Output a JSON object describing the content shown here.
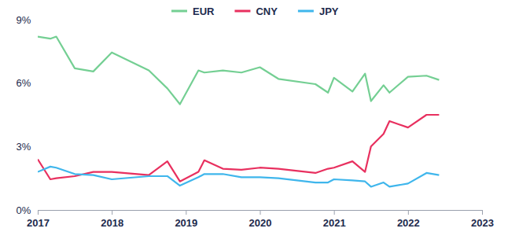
{
  "chart_data": {
    "type": "line",
    "x": [
      2017.0,
      2017.17,
      2017.25,
      2017.5,
      2017.75,
      2018.0,
      2018.5,
      2018.75,
      2018.92,
      2019.17,
      2019.25,
      2019.5,
      2019.75,
      2020.0,
      2020.25,
      2020.75,
      2020.92,
      2021.0,
      2021.25,
      2021.42,
      2021.5,
      2021.67,
      2021.75,
      2022.0,
      2022.25,
      2022.42
    ],
    "series": [
      {
        "name": "EUR",
        "color": "#74cf93",
        "values": [
          8.2,
          8.1,
          8.2,
          6.7,
          6.55,
          7.45,
          6.6,
          5.75,
          5.0,
          6.6,
          6.5,
          6.6,
          6.5,
          6.75,
          6.2,
          5.95,
          5.55,
          6.25,
          5.6,
          6.45,
          5.15,
          5.9,
          5.55,
          6.3,
          6.35,
          6.15
        ]
      },
      {
        "name": "CNY",
        "color": "#e8305f",
        "values": [
          2.4,
          1.45,
          1.5,
          1.6,
          1.8,
          1.8,
          1.65,
          2.3,
          1.35,
          1.8,
          2.35,
          1.95,
          1.9,
          2.0,
          1.95,
          1.75,
          1.95,
          2.0,
          2.3,
          1.8,
          3.0,
          3.6,
          4.2,
          3.9,
          4.5,
          4.5
        ]
      },
      {
        "name": "JPY",
        "color": "#3fb6ec",
        "values": [
          1.8,
          2.05,
          2.0,
          1.7,
          1.65,
          1.45,
          1.6,
          1.6,
          1.15,
          1.55,
          1.7,
          1.7,
          1.55,
          1.55,
          1.5,
          1.3,
          1.3,
          1.45,
          1.4,
          1.35,
          1.1,
          1.3,
          1.1,
          1.25,
          1.75,
          1.65
        ]
      }
    ],
    "xlim": [
      2017,
      2023
    ],
    "xticks": [
      2017,
      2018,
      2019,
      2020,
      2021,
      2022,
      2023
    ],
    "ylim": [
      0,
      9
    ],
    "yticks": [
      {
        "value": 0,
        "label": "0%"
      },
      {
        "value": 3,
        "label": "3%"
      },
      {
        "value": 6,
        "label": "6%"
      },
      {
        "value": 9,
        "label": "9%"
      }
    ],
    "legend": "top",
    "grid": false
  }
}
